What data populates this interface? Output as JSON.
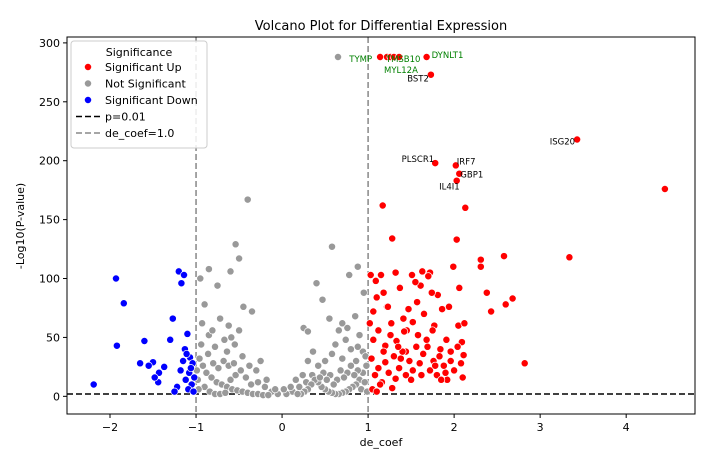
{
  "chart_data": {
    "type": "scatter",
    "title": "Volcano Plot for Differential Expression",
    "xlabel": "de_coef",
    "ylabel": "-Log10(P-value)",
    "xlim": [
      -2.5,
      4.8
    ],
    "ylim": [
      -15,
      305
    ],
    "xticks": [
      -2,
      -1,
      0,
      1,
      2,
      3,
      4
    ],
    "yticks": [
      0,
      50,
      100,
      150,
      200,
      250,
      300
    ],
    "thresholds": {
      "p_line_y": 2,
      "coef_lines_x": [
        -1.0,
        1.0
      ]
    },
    "legend": {
      "title": "Significance",
      "placement": "top-left",
      "entries": [
        {
          "label": "Significant Up",
          "kind": "marker",
          "color": "#ff0000"
        },
        {
          "label": "Not Significant",
          "kind": "marker",
          "color": "#999999"
        },
        {
          "label": "Significant Down",
          "kind": "marker",
          "color": "#0000ff"
        },
        {
          "label": "p=0.01",
          "kind": "line",
          "color": "#000000"
        },
        {
          "label": "de_coef=1.0",
          "kind": "line",
          "color": "#888888"
        }
      ]
    },
    "colors": {
      "up": "#ff0000",
      "not": "#999999",
      "down": "#0000ff",
      "edge": "#ffffff"
    },
    "series": [
      {
        "name": "Significant Up",
        "points": [
          [
            1.22,
            288
          ],
          [
            1.26,
            288
          ],
          [
            1.3,
            288
          ],
          [
            1.36,
            288
          ],
          [
            1.68,
            288
          ],
          [
            1.73,
            273
          ],
          [
            1.14,
            288
          ],
          [
            3.43,
            218
          ],
          [
            4.45,
            176
          ],
          [
            1.78,
            198
          ],
          [
            2.02,
            196
          ],
          [
            2.06,
            189
          ],
          [
            2.03,
            183
          ],
          [
            1.17,
            162
          ],
          [
            2.13,
            160
          ],
          [
            1.28,
            134
          ],
          [
            2.03,
            133
          ],
          [
            2.58,
            119
          ],
          [
            3.34,
            118
          ],
          [
            2.31,
            116
          ],
          [
            2.31,
            110
          ],
          [
            2.68,
            83
          ],
          [
            2.6,
            78
          ],
          [
            2.82,
            28
          ],
          [
            2.38,
            88
          ],
          [
            2.43,
            72
          ],
          [
            1.03,
            103
          ],
          [
            1.09,
            98
          ],
          [
            1.15,
            103
          ],
          [
            1.18,
            88
          ],
          [
            1.22,
            76
          ],
          [
            1.27,
            62
          ],
          [
            1.32,
            105
          ],
          [
            1.37,
            92
          ],
          [
            1.41,
            66
          ],
          [
            1.45,
            56
          ],
          [
            1.51,
            103
          ],
          [
            1.57,
            80
          ],
          [
            1.61,
            94
          ],
          [
            1.65,
            70
          ],
          [
            1.72,
            105
          ],
          [
            1.77,
            60
          ],
          [
            1.81,
            86
          ],
          [
            1.86,
            74
          ],
          [
            1.91,
            48
          ],
          [
            1.96,
            38
          ],
          [
            2.06,
            92
          ],
          [
            2.09,
            46
          ],
          [
            2.11,
            35
          ],
          [
            2.05,
            60
          ],
          [
            1.7,
            102
          ],
          [
            1.74,
            88
          ],
          [
            1.58,
            52
          ],
          [
            1.52,
            63
          ],
          [
            1.44,
            38
          ],
          [
            1.38,
            32
          ],
          [
            1.33,
            47
          ],
          [
            1.26,
            52
          ],
          [
            1.2,
            43
          ],
          [
            1.12,
            56
          ],
          [
            1.06,
            48
          ],
          [
            1.04,
            32
          ],
          [
            1.08,
            18
          ],
          [
            1.12,
            24
          ],
          [
            1.16,
            12
          ],
          [
            1.2,
            29
          ],
          [
            1.24,
            20
          ],
          [
            1.28,
            7
          ],
          [
            1.32,
            15
          ],
          [
            1.36,
            24
          ],
          [
            1.4,
            38
          ],
          [
            1.44,
            18
          ],
          [
            1.48,
            30
          ],
          [
            1.52,
            22
          ],
          [
            1.56,
            42
          ],
          [
            1.6,
            28
          ],
          [
            1.64,
            36
          ],
          [
            1.68,
            48
          ],
          [
            1.72,
            22
          ],
          [
            1.76,
            30
          ],
          [
            1.8,
            18
          ],
          [
            1.84,
            40
          ],
          [
            1.88,
            26
          ],
          [
            1.92,
            14
          ],
          [
            1.96,
            30
          ],
          [
            2.0,
            22
          ],
          [
            2.04,
            42
          ],
          [
            2.08,
            28
          ],
          [
            2.1,
            16
          ],
          [
            1.05,
            6
          ],
          [
            1.1,
            4
          ],
          [
            1.14,
            10
          ],
          [
            1.3,
            34
          ],
          [
            1.35,
            42
          ],
          [
            1.42,
            55
          ],
          [
            1.47,
            74
          ],
          [
            1.55,
            97
          ],
          [
            1.63,
            106
          ],
          [
            1.69,
            42
          ],
          [
            1.75,
            56
          ],
          [
            1.83,
            34
          ],
          [
            1.94,
            76
          ],
          [
            1.99,
            110
          ],
          [
            2.12,
            62
          ],
          [
            1.23,
            76
          ],
          [
            1.18,
            38
          ],
          [
            1.5,
            14
          ],
          [
            1.62,
            18
          ],
          [
            1.78,
            26
          ],
          [
            1.9,
            20
          ],
          [
            1.85,
            14
          ],
          [
            1.02,
            62
          ],
          [
            1.06,
            72
          ],
          [
            1.1,
            84
          ]
        ]
      },
      {
        "name": "Not Significant",
        "points": [
          [
            0.65,
            288
          ],
          [
            -0.4,
            167
          ],
          [
            -0.54,
            129
          ],
          [
            0.58,
            127
          ],
          [
            -0.85,
            108
          ],
          [
            0.78,
            103
          ],
          [
            0.88,
            110
          ],
          [
            0.4,
            96
          ],
          [
            -0.5,
            117
          ],
          [
            -0.6,
            106
          ],
          [
            -0.95,
            100
          ],
          [
            -0.75,
            94
          ],
          [
            0.95,
            88
          ],
          [
            0.47,
            82
          ],
          [
            -0.35,
            72
          ],
          [
            0.25,
            58
          ],
          [
            0.3,
            55
          ],
          [
            0.55,
            66
          ],
          [
            0.7,
            62
          ],
          [
            0.85,
            68
          ],
          [
            -0.45,
            76
          ],
          [
            -0.9,
            78
          ],
          [
            -0.72,
            66
          ],
          [
            -0.62,
            60
          ],
          [
            -0.5,
            56
          ],
          [
            -0.85,
            52
          ],
          [
            -0.78,
            42
          ],
          [
            -0.64,
            38
          ],
          [
            -0.55,
            44
          ],
          [
            -0.46,
            34
          ],
          [
            -0.38,
            26
          ],
          [
            -0.3,
            22
          ],
          [
            0.62,
            44
          ],
          [
            0.74,
            48
          ],
          [
            0.8,
            40
          ],
          [
            0.9,
            52
          ],
          [
            0.94,
            38
          ],
          [
            0.86,
            30
          ],
          [
            0.7,
            32
          ],
          [
            0.58,
            36
          ],
          [
            0.5,
            30
          ],
          [
            0.42,
            26
          ],
          [
            0.35,
            18
          ],
          [
            0.28,
            12
          ],
          [
            0.2,
            8
          ],
          [
            0.12,
            4
          ],
          [
            0.05,
            2
          ],
          [
            -0.05,
            2
          ],
          [
            -0.12,
            4
          ],
          [
            -0.2,
            8
          ],
          [
            -0.28,
            12
          ],
          [
            -0.96,
            32
          ],
          [
            -0.92,
            26
          ],
          [
            -0.88,
            20
          ],
          [
            -0.82,
            16
          ],
          [
            -0.76,
            12
          ],
          [
            -0.7,
            10
          ],
          [
            -0.64,
            8
          ],
          [
            -0.58,
            6
          ],
          [
            -0.52,
            5
          ],
          [
            -0.46,
            4
          ],
          [
            -0.4,
            3
          ],
          [
            -0.34,
            2
          ],
          [
            -0.28,
            2
          ],
          [
            -0.22,
            1
          ],
          [
            -0.16,
            1
          ],
          [
            -0.98,
            14
          ],
          [
            -0.9,
            8
          ],
          [
            -0.84,
            4
          ],
          [
            -0.78,
            2
          ],
          [
            -0.72,
            2
          ],
          [
            -0.66,
            3
          ],
          [
            -0.6,
            14
          ],
          [
            -0.54,
            18
          ],
          [
            -0.48,
            22
          ],
          [
            -0.42,
            16
          ],
          [
            -0.36,
            10
          ],
          [
            -0.94,
            44
          ],
          [
            -0.86,
            36
          ],
          [
            -0.8,
            28
          ],
          [
            -0.74,
            24
          ],
          [
            -0.68,
            30
          ],
          [
            -0.62,
            26
          ],
          [
            -0.56,
            28
          ],
          [
            0.98,
            26
          ],
          [
            0.94,
            20
          ],
          [
            0.9,
            14
          ],
          [
            0.86,
            10
          ],
          [
            0.82,
            8
          ],
          [
            0.78,
            6
          ],
          [
            0.74,
            4
          ],
          [
            0.7,
            3
          ],
          [
            0.66,
            2
          ],
          [
            0.62,
            2
          ],
          [
            0.58,
            3
          ],
          [
            0.54,
            4
          ],
          [
            0.5,
            6
          ],
          [
            0.46,
            8
          ],
          [
            0.42,
            12
          ],
          [
            0.38,
            14
          ],
          [
            0.34,
            10
          ],
          [
            0.3,
            6
          ],
          [
            0.26,
            4
          ],
          [
            0.22,
            2
          ],
          [
            0.18,
            2
          ],
          [
            0.96,
            12
          ],
          [
            0.92,
            6
          ],
          [
            0.88,
            22
          ],
          [
            0.84,
            18
          ],
          [
            0.8,
            26
          ],
          [
            0.76,
            20
          ],
          [
            0.72,
            16
          ],
          [
            0.68,
            22
          ],
          [
            0.64,
            14
          ],
          [
            0.6,
            10
          ],
          [
            0.56,
            18
          ],
          [
            0.52,
            14
          ],
          [
            0.48,
            20
          ],
          [
            0.44,
            16
          ],
          [
            -0.99,
            22
          ],
          [
            -0.97,
            6
          ],
          [
            0.99,
            4
          ],
          [
            0.97,
            34
          ],
          [
            -0.93,
            62
          ],
          [
            -0.81,
            56
          ],
          [
            -0.67,
            48
          ],
          [
            -0.59,
            50
          ],
          [
            0.66,
            56
          ],
          [
            0.76,
            58
          ],
          [
            0.88,
            42
          ],
          [
            0.3,
            30
          ],
          [
            0.36,
            38
          ],
          [
            0.16,
            14
          ],
          [
            0.1,
            8
          ],
          [
            -0.08,
            6
          ],
          [
            -0.25,
            30
          ],
          [
            -0.18,
            14
          ],
          [
            0.02,
            6
          ],
          [
            0.24,
            18
          ]
        ]
      },
      {
        "name": "Significant Down",
        "points": [
          [
            -2.19,
            10
          ],
          [
            -1.93,
            100
          ],
          [
            -1.84,
            79
          ],
          [
            -1.92,
            43
          ],
          [
            -1.6,
            47
          ],
          [
            -1.65,
            28
          ],
          [
            -1.5,
            29
          ],
          [
            -1.43,
            20
          ],
          [
            -1.44,
            12
          ],
          [
            -1.37,
            25
          ],
          [
            -1.27,
            66
          ],
          [
            -1.2,
            106
          ],
          [
            -1.17,
            96
          ],
          [
            -1.14,
            103
          ],
          [
            -1.1,
            53
          ],
          [
            -1.13,
            40
          ],
          [
            -1.07,
            33
          ],
          [
            -1.04,
            28
          ],
          [
            -1.08,
            20
          ],
          [
            -1.12,
            14
          ],
          [
            -1.05,
            10
          ],
          [
            -1.09,
            6
          ],
          [
            -1.03,
            4
          ],
          [
            -1.15,
            30
          ],
          [
            -1.18,
            22
          ],
          [
            -1.22,
            8
          ],
          [
            -1.25,
            4
          ],
          [
            -1.02,
            16
          ],
          [
            -1.06,
            24
          ],
          [
            -1.11,
            36
          ],
          [
            -1.3,
            48
          ],
          [
            -1.48,
            16
          ],
          [
            -1.55,
            26
          ]
        ]
      }
    ],
    "annotations": [
      {
        "text": "TYMP",
        "x": 1.14,
        "y": 288,
        "color": "#008000",
        "anchor": "end",
        "dx": -8,
        "dy": 5
      },
      {
        "text": "TMSB10",
        "x": 1.3,
        "y": 288,
        "color": "#008000",
        "anchor": "start",
        "dx": -8,
        "dy": 5
      },
      {
        "text": "DYNLT1",
        "x": 1.68,
        "y": 288,
        "color": "#008000",
        "anchor": "start",
        "dx": 5,
        "dy": 1
      },
      {
        "text": "MYL12A",
        "x": 1.22,
        "y": 288,
        "color": "#008000",
        "anchor": "start",
        "dx": -3,
        "dy": 16
      },
      {
        "text": "BST2",
        "x": 1.73,
        "y": 273,
        "color": "#000000",
        "anchor": "end",
        "dx": -2,
        "dy": 7
      },
      {
        "text": "ISG20",
        "x": 3.43,
        "y": 218,
        "color": "#000000",
        "anchor": "end",
        "dx": -2,
        "dy": 5
      },
      {
        "text": "PLSCR1",
        "x": 1.78,
        "y": 198,
        "color": "#000000",
        "anchor": "end",
        "dx": -1,
        "dy": -1
      },
      {
        "text": "IRF7",
        "x": 2.02,
        "y": 196,
        "color": "#000000",
        "anchor": "start",
        "dx": 1,
        "dy": -1
      },
      {
        "text": "GBP1",
        "x": 2.06,
        "y": 189,
        "color": "#000000",
        "anchor": "start",
        "dx": 1,
        "dy": 4
      },
      {
        "text": "IL4I1",
        "x": 2.03,
        "y": 183,
        "color": "#000000",
        "anchor": "end",
        "dx": 3,
        "dy": 9
      }
    ]
  }
}
